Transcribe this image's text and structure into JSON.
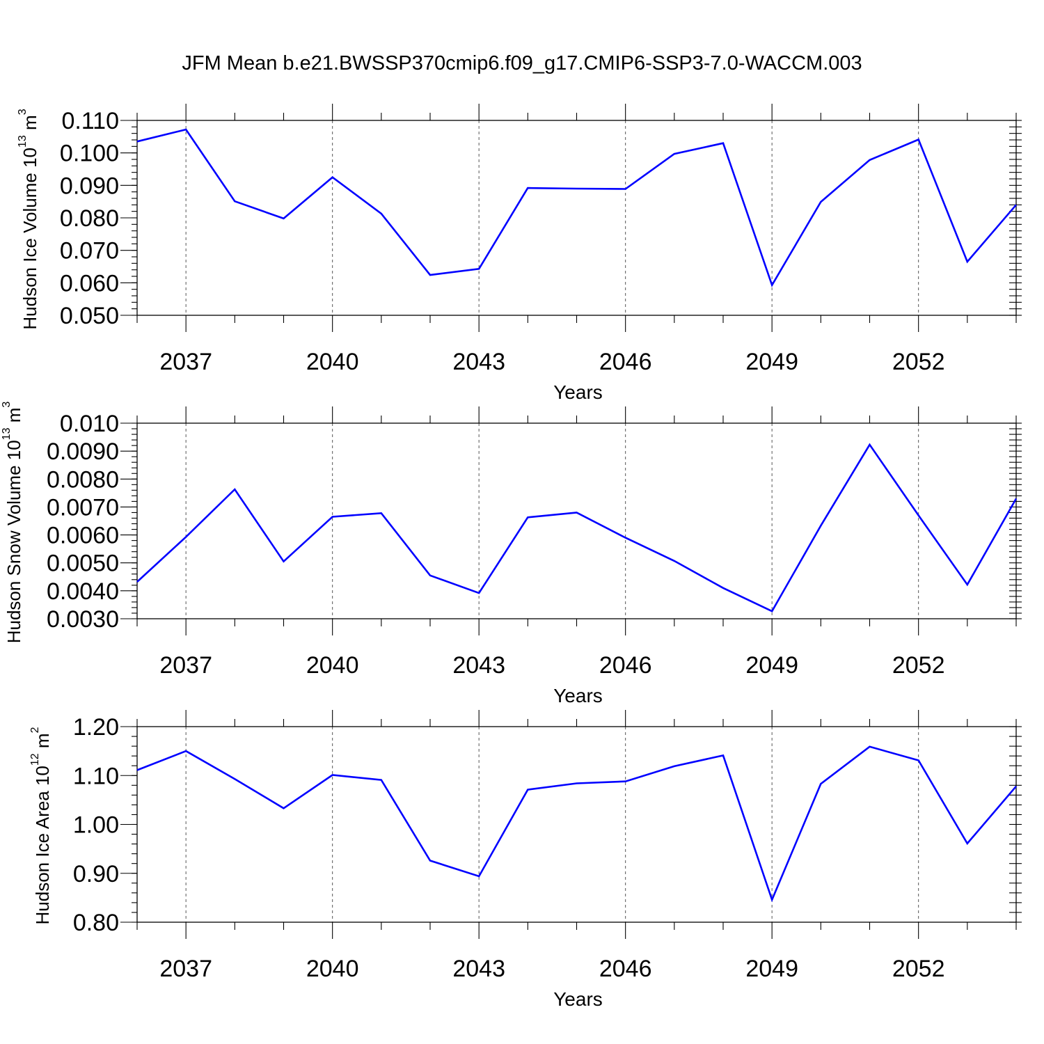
{
  "figure": {
    "title": "JFM Mean b.e21.BWSSP370cmip6.f09_g17.CMIP6-SSP3-7.0-WACCM.003"
  },
  "chart_data": [
    {
      "type": "line",
      "ylabel_main": "Hudson Ice Volume 10",
      "ylabel_exp": "13",
      "ylabel_unit": " m",
      "ylabel_unit_exp": "3",
      "xlabel": "Years",
      "xlim": [
        2036,
        2054
      ],
      "ylim": [
        0.05,
        0.11
      ],
      "y_major_ticks": [
        0.05,
        0.06,
        0.07,
        0.08,
        0.09,
        0.1,
        0.11
      ],
      "y_tick_labels": [
        "0.050",
        "0.060",
        "0.070",
        "0.080",
        "0.090",
        "0.100",
        "0.110"
      ],
      "y_minor_step": 0.002,
      "x_major_ticks": [
        2037,
        2040,
        2043,
        2046,
        2049,
        2052
      ],
      "x_tick_labels": [
        "2037",
        "2040",
        "2043",
        "2046",
        "2049",
        "2052"
      ],
      "grid": "vertical dashed at major x ticks",
      "color": "#0000ff",
      "x": [
        2036,
        2037,
        2038,
        2039,
        2040,
        2041,
        2042,
        2043,
        2044,
        2045,
        2046,
        2047,
        2048,
        2049,
        2050,
        2051,
        2052,
        2053,
        2054
      ],
      "y": [
        0.1035,
        0.1072,
        0.0851,
        0.0798,
        0.0925,
        0.0813,
        0.0624,
        0.0643,
        0.0892,
        0.089,
        0.0889,
        0.0997,
        0.103,
        0.0593,
        0.0849,
        0.0978,
        0.1041,
        0.0665,
        0.084
      ]
    },
    {
      "type": "line",
      "ylabel_main": "Hudson Snow Volume 10",
      "ylabel_exp": "13",
      "ylabel_unit": " m",
      "ylabel_unit_exp": "3",
      "xlabel": "Years",
      "xlim": [
        2036,
        2054
      ],
      "ylim": [
        0.003,
        0.01
      ],
      "y_major_ticks": [
        0.003,
        0.004,
        0.005,
        0.006,
        0.007,
        0.008,
        0.009,
        0.01
      ],
      "y_tick_labels": [
        "0.0030",
        "0.0040",
        "0.0050",
        "0.0060",
        "0.0070",
        "0.0080",
        "0.0090",
        "0.010"
      ],
      "y_minor_step": 0.0002,
      "x_major_ticks": [
        2037,
        2040,
        2043,
        2046,
        2049,
        2052
      ],
      "x_tick_labels": [
        "2037",
        "2040",
        "2043",
        "2046",
        "2049",
        "2052"
      ],
      "grid": "vertical dashed at major x ticks",
      "color": "#0000ff",
      "x": [
        2036,
        2037,
        2038,
        2039,
        2040,
        2041,
        2042,
        2043,
        2044,
        2045,
        2046,
        2047,
        2048,
        2049,
        2050,
        2051,
        2052,
        2053,
        2054
      ],
      "y": [
        0.00432,
        0.00593,
        0.00763,
        0.00505,
        0.00665,
        0.00678,
        0.00455,
        0.00392,
        0.00663,
        0.0068,
        0.0059,
        0.00507,
        0.0041,
        0.00327,
        0.00633,
        0.00923,
        0.0067,
        0.00422,
        0.0073
      ]
    },
    {
      "type": "line",
      "ylabel_main": "Hudson Ice Area 10",
      "ylabel_exp": "12",
      "ylabel_unit": " m",
      "ylabel_unit_exp": "2",
      "xlabel": "Years",
      "xlim": [
        2036,
        2054
      ],
      "ylim": [
        0.8,
        1.2
      ],
      "y_major_ticks": [
        0.8,
        0.9,
        1.0,
        1.1,
        1.2
      ],
      "y_tick_labels": [
        "0.80",
        "0.90",
        "1.00",
        "1.10",
        "1.20"
      ],
      "y_minor_step": 0.02,
      "x_major_ticks": [
        2037,
        2040,
        2043,
        2046,
        2049,
        2052
      ],
      "x_tick_labels": [
        "2037",
        "2040",
        "2043",
        "2046",
        "2049",
        "2052"
      ],
      "grid": "vertical dashed at major x ticks",
      "color": "#0000ff",
      "x": [
        2036,
        2037,
        2038,
        2039,
        2040,
        2041,
        2042,
        2043,
        2044,
        2045,
        2046,
        2047,
        2048,
        2049,
        2050,
        2051,
        2052,
        2053,
        2054
      ],
      "y": [
        1.111,
        1.15,
        1.093,
        1.033,
        1.101,
        1.091,
        0.926,
        0.894,
        1.071,
        1.084,
        1.088,
        1.119,
        1.141,
        0.846,
        1.083,
        1.159,
        1.131,
        0.961,
        1.078
      ]
    }
  ]
}
